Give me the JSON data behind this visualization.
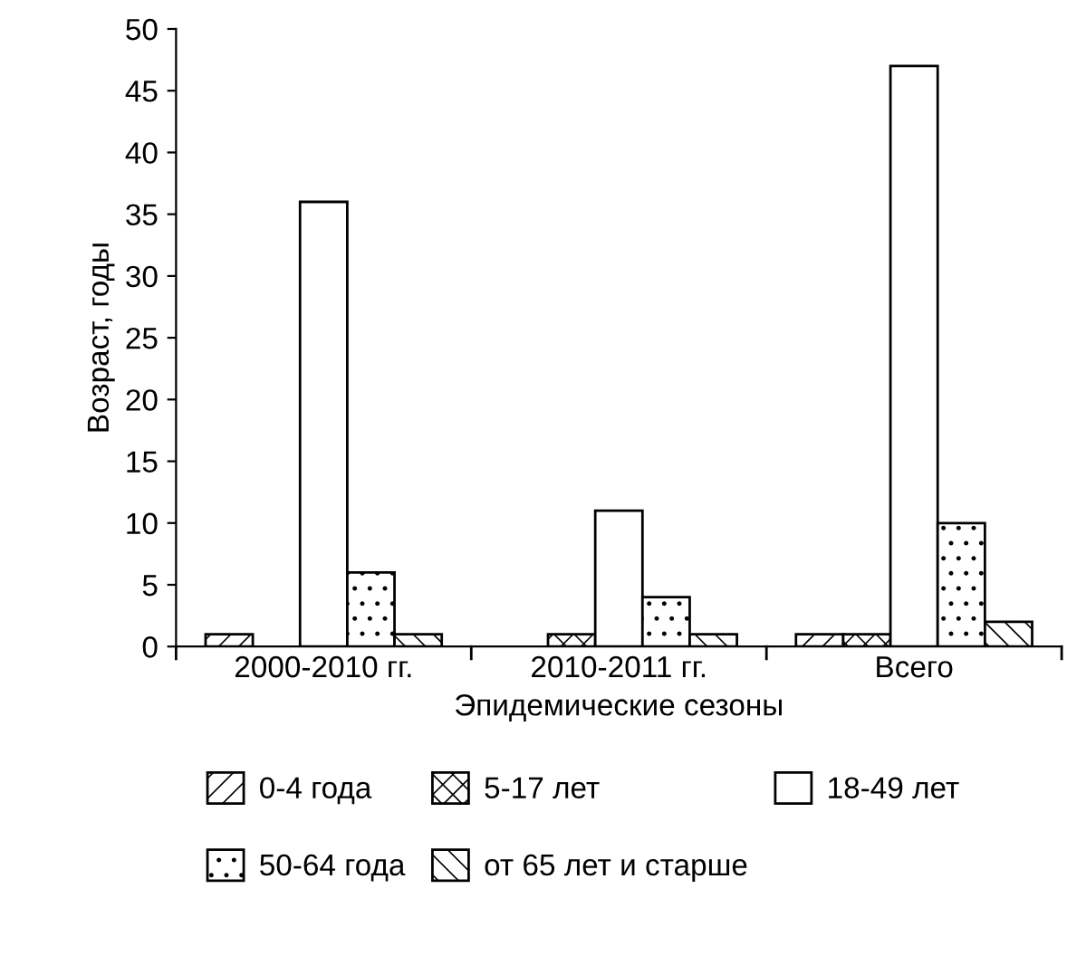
{
  "chart_data": {
    "type": "bar",
    "xlabel": "Эпидемические сезоны",
    "ylabel": "Возраст, годы",
    "categories": [
      "2000-2010 гг.",
      "2010-2011 гг.",
      "Всего"
    ],
    "series": [
      {
        "name": "0-4 года",
        "color": "#ffffff",
        "values": [
          1,
          0,
          1
        ]
      },
      {
        "name": "5-17 лет",
        "color": "#ffffff",
        "values": [
          0,
          1,
          1
        ]
      },
      {
        "name": "18-49 лет",
        "color": "#ffffff",
        "values": [
          36,
          11,
          47
        ]
      },
      {
        "name": "50-64 года",
        "color": "#ffffff",
        "values": [
          6,
          4,
          10
        ]
      },
      {
        "name": "от 65 лет и старше",
        "color": "#ffffff",
        "values": [
          1,
          1,
          2
        ]
      }
    ],
    "ylim": [
      0,
      50
    ],
    "yticks": [
      0,
      5,
      10,
      15,
      20,
      25,
      30,
      35,
      40,
      45,
      50
    ],
    "grid": false,
    "legend": "bottom"
  }
}
